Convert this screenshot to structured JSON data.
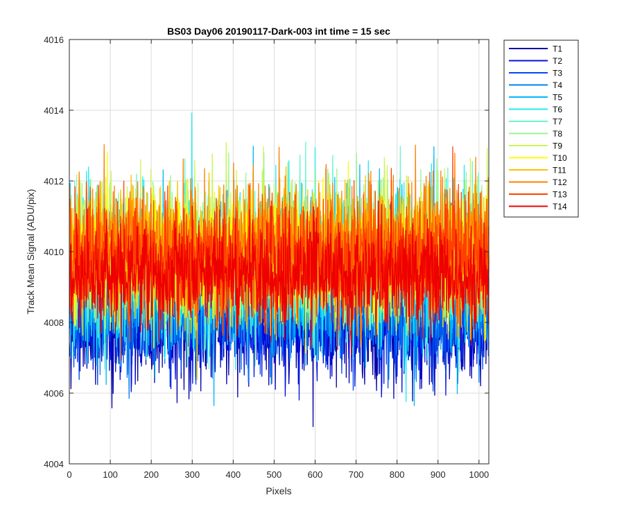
{
  "chart_data": {
    "type": "line",
    "title": "BS03 Day06 20190117-Dark-003 int time = 15 sec",
    "xlabel": "Pixels",
    "ylabel": "Track Mean Signal (ADU/pix)",
    "xlim": [
      0,
      1024
    ],
    "ylim": [
      4004,
      4016
    ],
    "xticks": [
      0,
      100,
      200,
      300,
      400,
      500,
      600,
      700,
      800,
      900,
      1000
    ],
    "yticks": [
      4004,
      4006,
      4008,
      4010,
      4012,
      4014,
      4016
    ],
    "grid": true,
    "legend_position": "outside-right",
    "n_points": 1024,
    "series": [
      {
        "name": "T1",
        "color": "#0000aa",
        "mean": 4008.0,
        "noise": 0.85,
        "seed": 11
      },
      {
        "name": "T2",
        "color": "#0010dd",
        "mean": 4008.1,
        "noise": 0.8,
        "seed": 23
      },
      {
        "name": "T3",
        "color": "#0048ee",
        "mean": 4008.4,
        "noise": 0.8,
        "seed": 37
      },
      {
        "name": "T4",
        "color": "#0080f0",
        "mean": 4008.7,
        "noise": 0.85,
        "seed": 41
      },
      {
        "name": "T5",
        "color": "#00b8f8",
        "mean": 4009.4,
        "noise": 1.1,
        "seed": 53
      },
      {
        "name": "T6",
        "color": "#22eaf0",
        "mean": 4009.6,
        "noise": 1.05,
        "seed": 67
      },
      {
        "name": "T7",
        "color": "#66f5cc",
        "mean": 4009.7,
        "noise": 1.0,
        "seed": 71
      },
      {
        "name": "T8",
        "color": "#99f590",
        "mean": 4009.9,
        "noise": 1.0,
        "seed": 83
      },
      {
        "name": "T9",
        "color": "#ccf555",
        "mean": 4010.0,
        "noise": 0.95,
        "seed": 97
      },
      {
        "name": "T10",
        "color": "#ffff00",
        "mean": 4009.9,
        "noise": 0.9,
        "seed": 101
      },
      {
        "name": "T11",
        "color": "#ffc000",
        "mean": 4010.0,
        "noise": 0.9,
        "seed": 113
      },
      {
        "name": "T12",
        "color": "#ff8000",
        "mean": 4010.2,
        "noise": 0.95,
        "seed": 127
      },
      {
        "name": "T13",
        "color": "#ff4000",
        "mean": 4009.8,
        "noise": 0.85,
        "seed": 131
      },
      {
        "name": "T14",
        "color": "#ee0000",
        "mean": 4009.3,
        "noise": 0.75,
        "seed": 149
      }
    ]
  }
}
